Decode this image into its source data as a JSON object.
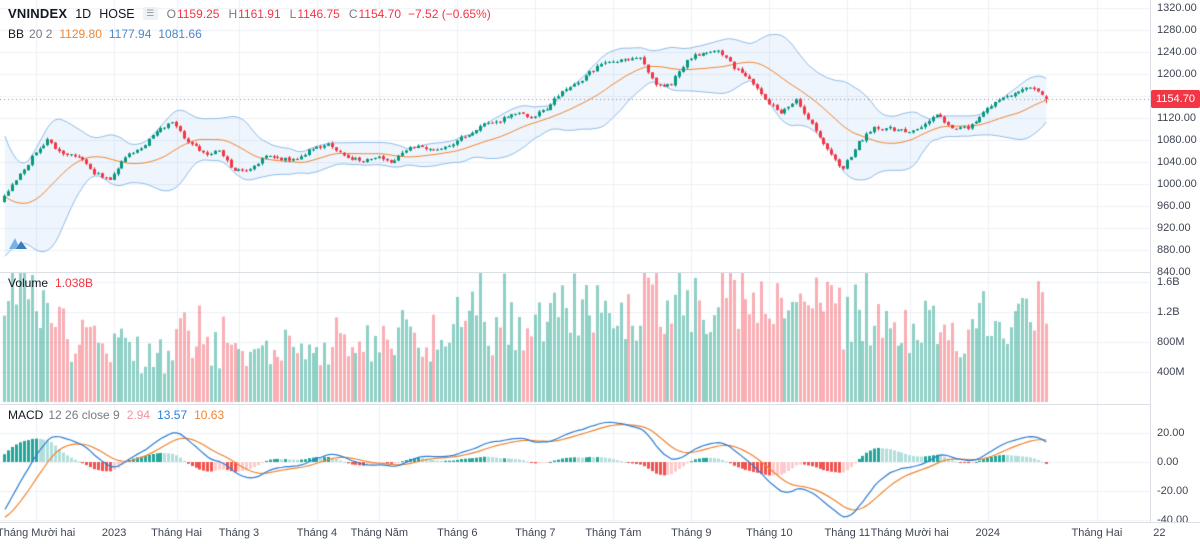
{
  "colors": {
    "up": "#089981",
    "down": "#f23645",
    "vol_up": "rgba(8,153,129,0.45)",
    "vol_down": "rgba(242,54,69,0.40)",
    "bb_band": "#8fbdea",
    "bb_fill": "rgba(135,181,230,0.13)",
    "bb_basis": "#ef8532",
    "macd_line": "#2e7fd4",
    "macd_signal": "#ef8532",
    "hist_grow_above": "#26a69a",
    "hist_fall_above": "#b2dfdb",
    "hist_grow_below": "#fccbcd",
    "hist_fall_below": "#f0534f",
    "grid": "#eef1f6",
    "separator": "#dcdfe5",
    "axis_text": "#3f4554",
    "legend_text": "#131722",
    "legend_muted": "#787b86",
    "neg": "#f23645",
    "badge_bg": "#f23645",
    "badge_text": "#ffffff",
    "price_line": "#8a8e99",
    "bb_val1": "#ef8532",
    "bb_val2": "#4f87c7",
    "bb_val3": "#4f87c7",
    "macd_val1": "#f291a4",
    "macd_val2": "#2e7fd4",
    "macd_val3": "#ef8532",
    "vol_val": "#f23645"
  },
  "header": {
    "symbol": "VNINDEX",
    "interval": "1D",
    "exchange": "HOSE",
    "ohlc": [
      {
        "k": "O",
        "v": "1159.25"
      },
      {
        "k": "H",
        "v": "1161.91"
      },
      {
        "k": "L",
        "v": "1146.75"
      },
      {
        "k": "C",
        "v": "1154.70"
      }
    ],
    "change": "−7.52 (−0.65%)"
  },
  "legends": {
    "bb": {
      "name": "BB",
      "params": "20 2",
      "v1": "1129.80",
      "v2": "1177.94",
      "v3": "1081.66"
    },
    "volume": {
      "name": "Volume",
      "value": "1.038B"
    },
    "macd": {
      "name": "MACD",
      "params": "12 26 close 9",
      "v1": "2.94",
      "v2": "13.57",
      "v3": "10.63"
    }
  },
  "axes": {
    "price_ticks": [
      {
        "v": 1320,
        "label": "1320.00"
      },
      {
        "v": 1280,
        "label": "1280.00"
      },
      {
        "v": 1240,
        "label": "1240.00"
      },
      {
        "v": 1200,
        "label": "1200.00"
      },
      {
        "v": 1160,
        "label": "1160.00"
      },
      {
        "v": 1120,
        "label": "1120.00"
      },
      {
        "v": 1080,
        "label": "1080.00"
      },
      {
        "v": 1040,
        "label": "1040.00"
      },
      {
        "v": 1000,
        "label": "1000.00"
      },
      {
        "v": 960,
        "label": "960.00"
      },
      {
        "v": 920,
        "label": "920.00"
      },
      {
        "v": 880,
        "label": "880.00"
      },
      {
        "v": 840,
        "label": "840.00"
      }
    ],
    "last_price": 1154.7,
    "last_price_label": "1154.70",
    "volume_ticks": [
      {
        "v": 1600,
        "label": "1.6B"
      },
      {
        "v": 1200,
        "label": "1.2B"
      },
      {
        "v": 800,
        "label": "800M"
      },
      {
        "v": 400,
        "label": "400M"
      }
    ],
    "macd_ticks": [
      {
        "v": 20,
        "label": "20.00"
      },
      {
        "v": 0,
        "label": "0.00"
      },
      {
        "v": -20,
        "label": "-20.00"
      },
      {
        "v": -40,
        "label": "-40.00"
      }
    ],
    "time_ticks": [
      {
        "label": "Tháng Mười hai",
        "week": 2
      },
      {
        "label": "2023",
        "week": 7
      },
      {
        "label": "Tháng Hai",
        "week": 11
      },
      {
        "label": "Tháng 3",
        "week": 15
      },
      {
        "label": "Tháng 4",
        "week": 20
      },
      {
        "label": "Tháng Năm",
        "week": 24
      },
      {
        "label": "Tháng 6",
        "week": 29
      },
      {
        "label": "Tháng 7",
        "week": 34
      },
      {
        "label": "Tháng Tám",
        "week": 39
      },
      {
        "label": "Tháng 9",
        "week": 44
      },
      {
        "label": "Tháng 10",
        "week": 49
      },
      {
        "label": "Tháng 11",
        "week": 54
      },
      {
        "label": "Tháng Mười hai",
        "week": 58
      },
      {
        "label": "2024",
        "week": 63
      }
    ],
    "future_ticks": [
      {
        "label": "Tháng Hai",
        "bars": 12
      },
      {
        "label": "22",
        "bars": 28
      }
    ]
  },
  "chart_data": {
    "type": "candlestick",
    "title": "VNINDEX 1D HOSE",
    "panes": [
      "price+bollinger(20,2)",
      "volume",
      "macd(12,26,close,9)"
    ],
    "price_axis_range": [
      840,
      1320
    ],
    "volume_axis_range_m": [
      0,
      1700
    ],
    "macd_axis_range": [
      -45,
      25
    ],
    "grid": true,
    "last_bar": {
      "o": 1159.25,
      "h": 1161.91,
      "l": 1146.75,
      "c": 1154.7
    },
    "prev_close": 1162.22,
    "last_volume_m": 1038,
    "volume_spike_m": 1650,
    "warmup_weekly_closes": [
      1115,
      1060,
      997,
      930,
      911,
      968
    ],
    "weekly_closes": [
      1005,
      1048,
      1080,
      1052,
      1052,
      1020,
      1007,
      1051,
      1066,
      1098,
      1111,
      1077,
      1055,
      1059,
      1024,
      1025,
      1053,
      1045,
      1047,
      1065,
      1070,
      1052,
      1042,
      1049,
      1040,
      1064,
      1067,
      1063,
      1075,
      1091,
      1107,
      1115,
      1129,
      1120,
      1138,
      1168,
      1185,
      1208,
      1222,
      1226,
      1232,
      1178,
      1183,
      1224,
      1241,
      1245,
      1212,
      1193,
      1154,
      1128,
      1154,
      1108,
      1060,
      1028,
      1076,
      1101,
      1101,
      1095,
      1102,
      1124,
      1102,
      1103,
      1130,
      1155,
      1163,
      1176,
      1160
    ],
    "weekly_volume_m": [
      750,
      820,
      780,
      700,
      650,
      600,
      520,
      480,
      430,
      380,
      460,
      520,
      560,
      510,
      470,
      460,
      510,
      470,
      520,
      560,
      510,
      560,
      500,
      590,
      540,
      610,
      650,
      700,
      740,
      800,
      860,
      810,
      850,
      800,
      760,
      810,
      860,
      900,
      860,
      900,
      950,
      1150,
      860,
      900,
      950,
      1000,
      900,
      860,
      810,
      700,
      760,
      810,
      720,
      660,
      710,
      760,
      810,
      700,
      650,
      700,
      610,
      560,
      610,
      660,
      710,
      820,
      900
    ],
    "bollinger": {
      "period": 20,
      "stddev": 2,
      "basis": 1129.8,
      "upper": 1177.94,
      "lower": 1081.66
    },
    "macd": {
      "fast": 12,
      "slow": 26,
      "source": "close",
      "signal_period": 9,
      "histogram": 2.94,
      "macd_value": 13.57,
      "signal_value": 10.63
    }
  }
}
